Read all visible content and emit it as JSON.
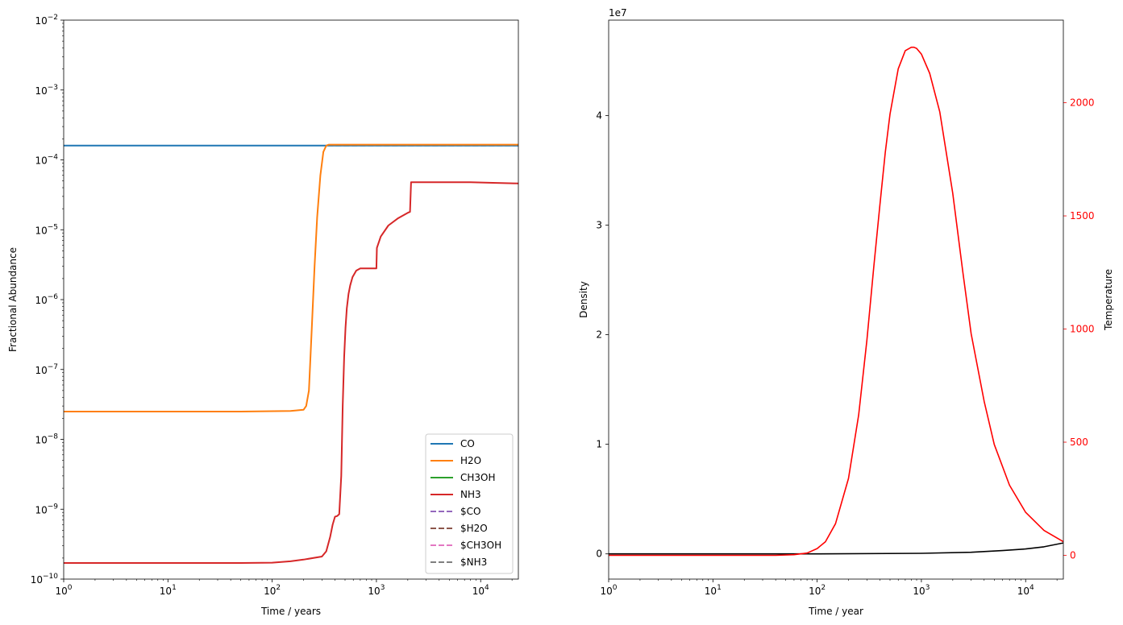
{
  "chart_data": [
    {
      "type": "line",
      "xlabel": "Time / years",
      "ylabel": "Fractional Abundance",
      "xscale": "log",
      "yscale": "log",
      "xlim": [
        1,
        23000
      ],
      "ylim": [
        1e-10,
        0.01
      ],
      "x_ticks": [
        {
          "value": 1,
          "label": "10^0"
        },
        {
          "value": 10,
          "label": "10^1"
        },
        {
          "value": 100,
          "label": "10^2"
        },
        {
          "value": 1000,
          "label": "10^3"
        },
        {
          "value": 10000,
          "label": "10^4"
        }
      ],
      "y_ticks": [
        {
          "value": 1e-10,
          "label": "10^−10"
        },
        {
          "value": 1e-09,
          "label": "10^−9"
        },
        {
          "value": 1e-08,
          "label": "10^−8"
        },
        {
          "value": 1e-07,
          "label": "10^−7"
        },
        {
          "value": 1e-06,
          "label": "10^−6"
        },
        {
          "value": 1e-05,
          "label": "10^−5"
        },
        {
          "value": 0.0001,
          "label": "10^−4"
        },
        {
          "value": 0.001,
          "label": "10^−3"
        },
        {
          "value": 0.01,
          "label": "10^−2"
        }
      ],
      "legend": "lower-right",
      "series": [
        {
          "name": "CO",
          "color": "#1f77b4",
          "dash": "solid",
          "x": [
            1,
            23000
          ],
          "y": [
            0.00016,
            0.00016
          ]
        },
        {
          "name": "H2O",
          "color": "#ff7f0e",
          "dash": "solid",
          "x": [
            1,
            50,
            150,
            200,
            212,
            225,
            240,
            255,
            270,
            290,
            310,
            330,
            350,
            1000,
            10000,
            23000
          ],
          "y": [
            2.5e-08,
            2.5e-08,
            2.55e-08,
            2.65e-08,
            3e-08,
            5e-08,
            4e-07,
            3e-06,
            1.5e-05,
            6e-05,
            0.00013,
            0.00016,
            0.000165,
            0.000165,
            0.000165,
            0.000165
          ]
        },
        {
          "name": "CH3OH",
          "color": "#2ca02c",
          "dash": "solid",
          "x": [],
          "y": []
        },
        {
          "name": "NH3",
          "color": "#d62728",
          "dash": "solid",
          "x": [
            1,
            50,
            100,
            150,
            200,
            300,
            330,
            360,
            380,
            400,
            420,
            440,
            460,
            475,
            490,
            505,
            520,
            540,
            560,
            590,
            640,
            700,
            800,
            900,
            1000,
            1010,
            1100,
            1300,
            1600,
            2000,
            2100,
            2150,
            3000,
            5000,
            8000,
            12000,
            23000
          ],
          "y": [
            1.7e-10,
            1.7e-10,
            1.72e-10,
            1.8e-10,
            1.9e-10,
            2.1e-10,
            2.5e-10,
            4e-10,
            6e-10,
            7.8e-10,
            8e-10,
            8.5e-10,
            3e-09,
            3e-08,
            1.5e-07,
            4e-07,
            7.5e-07,
            1.2e-06,
            1.6e-06,
            2.1e-06,
            2.6e-06,
            2.8e-06,
            2.8e-06,
            2.8e-06,
            2.8e-06,
            5.5e-06,
            8e-06,
            1.15e-05,
            1.45e-05,
            1.75e-05,
            1.8e-05,
            4.8e-05,
            4.8e-05,
            4.8e-05,
            4.8e-05,
            4.7e-05,
            4.6e-05
          ]
        },
        {
          "name": "$CO",
          "color": "#9467bd",
          "dash": "dashed",
          "x": [],
          "y": []
        },
        {
          "name": "$H2O",
          "color": "#8c564b",
          "dash": "dashed",
          "x": [],
          "y": []
        },
        {
          "name": "$CH3OH",
          "color": "#e377c2",
          "dash": "dashed",
          "x": [],
          "y": []
        },
        {
          "name": "$NH3",
          "color": "#7f7f7f",
          "dash": "dashed",
          "x": [
            340,
            23000
          ],
          "y": [
            0.000161,
            0.000161
          ]
        }
      ]
    },
    {
      "type": "line",
      "xlabel": "Time / year",
      "ylabel": "Density",
      "y2label": "Temperature",
      "xscale": "log",
      "xlim": [
        1,
        23000
      ],
      "ylim": [
        -2300000.0,
        48700000.0
      ],
      "y2lim": [
        -105,
        2365
      ],
      "offset_label": "1e7",
      "x_ticks": [
        {
          "value": 1,
          "label": "10^0"
        },
        {
          "value": 10,
          "label": "10^1"
        },
        {
          "value": 100,
          "label": "10^2"
        },
        {
          "value": 1000,
          "label": "10^3"
        },
        {
          "value": 10000,
          "label": "10^4"
        }
      ],
      "y_ticks": [
        {
          "value": 0,
          "label": "0"
        },
        {
          "value": 10000000.0,
          "label": "1"
        },
        {
          "value": 20000000.0,
          "label": "2"
        },
        {
          "value": 30000000.0,
          "label": "3"
        },
        {
          "value": 40000000.0,
          "label": "4"
        }
      ],
      "y2_ticks": [
        {
          "value": 0,
          "label": "0"
        },
        {
          "value": 500,
          "label": "500"
        },
        {
          "value": 1000,
          "label": "1000"
        },
        {
          "value": 1500,
          "label": "1500"
        },
        {
          "value": 2000,
          "label": "2000"
        }
      ],
      "y2_color": "#ff0000",
      "series": [
        {
          "axis": "y",
          "color": "#000000",
          "x": [
            1,
            100,
            1000,
            3000,
            6000,
            10000,
            15000,
            23000
          ],
          "y": [
            0,
            0,
            50000,
            150000,
            300000,
            450000,
            650000,
            1000000
          ]
        },
        {
          "axis": "y2",
          "color": "#ff0000",
          "x": [
            1,
            40,
            60,
            80,
            100,
            120,
            150,
            200,
            250,
            300,
            350,
            400,
            450,
            500,
            600,
            700,
            800,
            850,
            900,
            1000,
            1200,
            1500,
            2000,
            2500,
            3000,
            4000,
            5000,
            7000,
            10000,
            15000,
            23000
          ],
          "y": [
            0,
            0,
            3,
            10,
            30,
            60,
            140,
            340,
            620,
            950,
            1280,
            1550,
            1780,
            1950,
            2150,
            2230,
            2245,
            2245,
            2240,
            2215,
            2130,
            1960,
            1600,
            1250,
            980,
            680,
            490,
            310,
            190,
            110,
            60
          ]
        }
      ]
    }
  ]
}
